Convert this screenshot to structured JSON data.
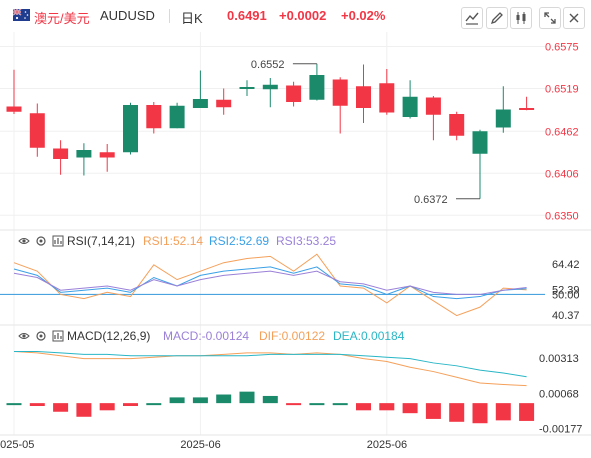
{
  "header": {
    "pair_name": "澳元/美元",
    "symbol": "AUDUSD",
    "period": "日K",
    "price": "0.6491",
    "change": "+0.0002",
    "change_pct": "+0.02%"
  },
  "colors": {
    "up": "#1a8a6b",
    "down": "#f23645",
    "rsi1": "#f5a05a",
    "rsi2": "#3aa0e6",
    "rsi3": "#9a80d8",
    "macd_dif": "#f5a05a",
    "macd_dea": "#29b6c6",
    "axis_text": "#333333",
    "grid": "#f0f0f0"
  },
  "icons": [
    "visibility-icon",
    "settings-icon",
    "fullscreen-icon",
    "zoom-in-icon",
    "close-icon"
  ],
  "chart_data": [
    {
      "type": "candlestick",
      "title": "AUDUSD 日K",
      "y_ticks": [
        0.6575,
        0.6519,
        0.6462,
        0.6406,
        0.635
      ],
      "y_tick_labels": [
        "0.6575",
        "0.6519",
        "0.6462",
        "0.6406",
        "0.6350"
      ],
      "ylim": [
        0.6333,
        0.6597
      ],
      "x_tick_labels": [
        "2025-05",
        "2025-06",
        "2025-06"
      ],
      "x_tick_indices": [
        0,
        8,
        16
      ],
      "annotations": [
        {
          "text": "0.6552",
          "index": 13,
          "value": 0.6552,
          "kind": "high"
        },
        {
          "text": "0.6372",
          "index": 20,
          "value": 0.6372,
          "kind": "low"
        }
      ],
      "candles": [
        {
          "o": 0.6495,
          "h": 0.6544,
          "l": 0.6485,
          "c": 0.6488
        },
        {
          "o": 0.6486,
          "h": 0.6499,
          "l": 0.6428,
          "c": 0.644
        },
        {
          "o": 0.6439,
          "h": 0.645,
          "l": 0.6404,
          "c": 0.6425
        },
        {
          "o": 0.6427,
          "h": 0.6446,
          "l": 0.6403,
          "c": 0.6437
        },
        {
          "o": 0.6434,
          "h": 0.6445,
          "l": 0.6408,
          "c": 0.6427
        },
        {
          "o": 0.6434,
          "h": 0.65,
          "l": 0.6431,
          "c": 0.6497
        },
        {
          "o": 0.6497,
          "h": 0.6501,
          "l": 0.6459,
          "c": 0.6466
        },
        {
          "o": 0.6466,
          "h": 0.65,
          "l": 0.6466,
          "c": 0.6496
        },
        {
          "o": 0.6493,
          "h": 0.6543,
          "l": 0.6493,
          "c": 0.6505
        },
        {
          "o": 0.6504,
          "h": 0.6519,
          "l": 0.6484,
          "c": 0.6494
        },
        {
          "o": 0.6519,
          "h": 0.653,
          "l": 0.6509,
          "c": 0.6521
        },
        {
          "o": 0.6518,
          "h": 0.6533,
          "l": 0.6494,
          "c": 0.6524
        },
        {
          "o": 0.6523,
          "h": 0.6528,
          "l": 0.6495,
          "c": 0.6501
        },
        {
          "o": 0.6504,
          "h": 0.6552,
          "l": 0.6503,
          "c": 0.6537
        },
        {
          "o": 0.6531,
          "h": 0.6534,
          "l": 0.6459,
          "c": 0.6496
        },
        {
          "o": 0.6522,
          "h": 0.6551,
          "l": 0.6473,
          "c": 0.6493
        },
        {
          "o": 0.6526,
          "h": 0.6545,
          "l": 0.6484,
          "c": 0.6487
        },
        {
          "o": 0.6481,
          "h": 0.653,
          "l": 0.6479,
          "c": 0.6508
        },
        {
          "o": 0.6507,
          "h": 0.6509,
          "l": 0.645,
          "c": 0.6484
        },
        {
          "o": 0.6485,
          "h": 0.6488,
          "l": 0.645,
          "c": 0.6456
        },
        {
          "o": 0.6432,
          "h": 0.6464,
          "l": 0.6372,
          "c": 0.6462
        },
        {
          "o": 0.6467,
          "h": 0.6522,
          "l": 0.646,
          "c": 0.6491
        },
        {
          "o": 0.6493,
          "h": 0.6508,
          "l": 0.649,
          "c": 0.6491
        }
      ]
    },
    {
      "type": "line",
      "title": "RSI(7,14,21)",
      "legend": [
        {
          "label": "RSI1:52.14",
          "color_key": "rsi1"
        },
        {
          "label": "RSI2:52.69",
          "color_key": "rsi2"
        },
        {
          "label": "RSI3:53.25",
          "color_key": "rsi3"
        }
      ],
      "y_ticks": [
        64.42,
        52.39,
        50.0,
        40.37
      ],
      "y_tick_labels": [
        "64.42",
        "52.39",
        "50.00",
        "40.37"
      ],
      "ylim": [
        36.5,
        71
      ],
      "reference_line": 50.0,
      "series": [
        {
          "name": "RSI1",
          "color_key": "rsi1",
          "values": [
            65,
            61,
            50,
            48,
            51,
            49,
            64,
            57,
            61,
            65,
            67,
            68,
            61,
            69,
            54,
            53,
            46,
            54,
            47,
            40,
            44,
            53,
            52.14
          ]
        },
        {
          "name": "RSI2",
          "color_key": "rsi2",
          "values": [
            62,
            59,
            51,
            52,
            53,
            51,
            58,
            54,
            59,
            61,
            62,
            63,
            60,
            63,
            55,
            54,
            50,
            54,
            49,
            48,
            49,
            52,
            52.69
          ]
        },
        {
          "name": "RSI3",
          "color_key": "rsi3",
          "values": [
            60,
            58,
            52,
            53,
            54,
            52,
            57,
            54,
            57,
            59,
            60,
            61,
            59,
            61,
            56,
            55,
            52,
            54,
            51,
            50,
            50,
            52,
            53.25
          ]
        }
      ]
    },
    {
      "type": "bar+line",
      "title": "MACD(12,26,9)",
      "legend": [
        {
          "label": "MACD:-0.00124",
          "color_key": "down"
        },
        {
          "label": "DIF:0.00122",
          "color_key": "macd_dif"
        },
        {
          "label": "DEA:0.00184",
          "color_key": "macd_dea"
        }
      ],
      "y_ticks": [
        0.00313,
        0.00068,
        -0.00177
      ],
      "y_tick_labels": [
        "0.00313",
        "0.00068",
        "-0.00177"
      ],
      "ylim": [
        -0.00222,
        0.00405
      ],
      "histogram": [
        0.0,
        -0.0002,
        -0.0006,
        -0.00095,
        -0.0005,
        -0.0002,
        0.0,
        0.0004,
        0.0004,
        0.0006,
        0.0008,
        0.0005,
        -0.0001,
        0.0,
        0.0,
        -0.0005,
        -0.0005,
        -0.0007,
        -0.0011,
        -0.0013,
        -0.0014,
        -0.0012,
        -0.00124
      ],
      "dif": [
        0.0036,
        0.0035,
        0.0033,
        0.0031,
        0.0031,
        0.0031,
        0.0032,
        0.0033,
        0.0033,
        0.0034,
        0.0035,
        0.0035,
        0.0034,
        0.0035,
        0.0034,
        0.0031,
        0.0029,
        0.0025,
        0.0022,
        0.0018,
        0.0014,
        0.0013,
        0.00122
      ],
      "dea": [
        0.0036,
        0.0036,
        0.0035,
        0.0034,
        0.0034,
        0.0033,
        0.0033,
        0.0033,
        0.0033,
        0.0033,
        0.0033,
        0.0034,
        0.0034,
        0.0034,
        0.0034,
        0.0033,
        0.0032,
        0.0031,
        0.0028,
        0.0026,
        0.0023,
        0.0021,
        0.00184
      ]
    }
  ]
}
